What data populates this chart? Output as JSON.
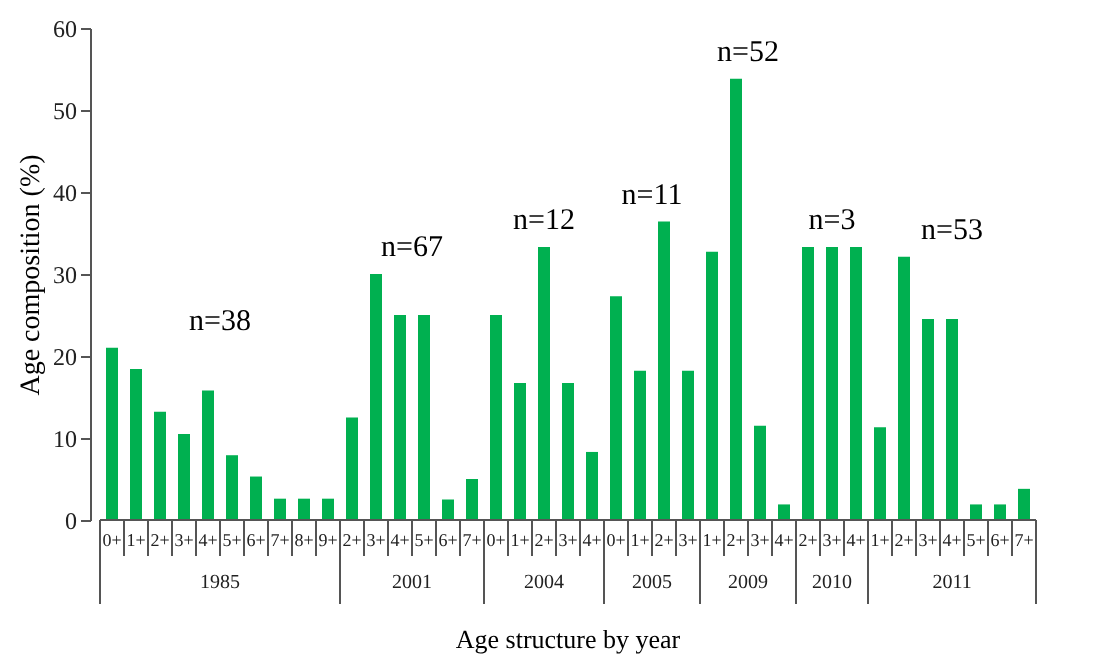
{
  "chart_data": {
    "type": "bar",
    "xlabel": "Age structure by year",
    "ylabel": "Age composition (%)",
    "categories": [
      "0+",
      "1+",
      "2+",
      "3+",
      "4+",
      "5+",
      "6+",
      "7+",
      "8+",
      "9+",
      "2+",
      "3+",
      "4+",
      "5+",
      "6+",
      "7+",
      "0+",
      "1+",
      "2+",
      "3+",
      "4+",
      "0+",
      "1+",
      "2+",
      "3+",
      "1+",
      "2+",
      "3+",
      "4+",
      "2+",
      "3+",
      "4+",
      "1+",
      "2+",
      "3+",
      "4+",
      "5+",
      "6+",
      "7+"
    ],
    "values": [
      21,
      18.4,
      13.2,
      10.5,
      15.8,
      7.9,
      5.3,
      2.6,
      2.6,
      2.6,
      12.5,
      30,
      25,
      25,
      2.5,
      5,
      25,
      16.7,
      33.3,
      16.7,
      8.3,
      27.3,
      18.2,
      36.4,
      18.2,
      32.7,
      53.8,
      11.5,
      1.9,
      33.3,
      33.3,
      33.3,
      11.3,
      32.1,
      24.5,
      24.5,
      1.9,
      1.9,
      3.8
    ],
    "color": "#00b050",
    "annotations": [
      "n=38",
      "n=67",
      "n=12",
      "n=11",
      "n=52",
      "n=3",
      "n=53",
      "1985",
      "2001",
      "2004",
      "2005",
      "2009",
      "2010",
      "2011"
    ],
    "ylim": [
      0,
      60
    ],
    "yticks": [
      0,
      10,
      20,
      30,
      40,
      50,
      60
    ],
    "grid": false
  }
}
